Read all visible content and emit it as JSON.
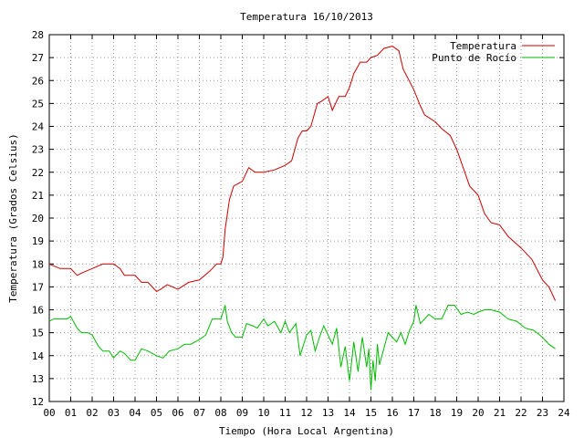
{
  "chart_data": {
    "type": "line",
    "title": "Temperatura 16/10/2013",
    "xlabel": "Tiempo (Hora Local Argentina)",
    "ylabel": "Temperatura (Grados Celsius)",
    "xlim": [
      0,
      24
    ],
    "ylim": [
      12,
      28
    ],
    "xticks": [
      "00",
      "01",
      "02",
      "03",
      "04",
      "05",
      "06",
      "07",
      "08",
      "09",
      "10",
      "11",
      "12",
      "13",
      "14",
      "15",
      "16",
      "17",
      "18",
      "19",
      "20",
      "21",
      "22",
      "23",
      "24"
    ],
    "yticks": [
      "12",
      "13",
      "14",
      "15",
      "16",
      "17",
      "18",
      "19",
      "20",
      "21",
      "22",
      "23",
      "24",
      "25",
      "26",
      "27",
      "28"
    ],
    "grid": true,
    "legend_position": "top-right",
    "series": [
      {
        "name": "Temperatura",
        "color": "#cc0000",
        "x": [
          0.0,
          0.5,
          1.0,
          1.3,
          1.5,
          2.0,
          2.5,
          3.0,
          3.3,
          3.5,
          4.0,
          4.3,
          4.6,
          5.0,
          5.2,
          5.5,
          6.0,
          6.5,
          7.0,
          7.5,
          7.8,
          8.0,
          8.1,
          8.2,
          8.4,
          8.6,
          8.8,
          9.0,
          9.3,
          9.6,
          10.0,
          10.5,
          11.0,
          11.3,
          11.6,
          11.8,
          12.0,
          12.2,
          12.5,
          12.7,
          13.0,
          13.2,
          13.5,
          13.8,
          14.0,
          14.2,
          14.5,
          14.8,
          15.0,
          15.3,
          15.6,
          16.0,
          16.3,
          16.5,
          17.0,
          17.3,
          17.5,
          18.0,
          18.3,
          18.7,
          19.0,
          19.3,
          19.6,
          20.0,
          20.3,
          20.6,
          21.0,
          21.4,
          22.0,
          22.5,
          23.0,
          23.3,
          23.6
        ],
        "y": [
          18.0,
          17.8,
          17.8,
          17.5,
          17.6,
          17.8,
          18.0,
          18.0,
          17.8,
          17.5,
          17.5,
          17.2,
          17.2,
          16.8,
          16.9,
          17.1,
          16.9,
          17.2,
          17.3,
          17.7,
          18.0,
          18.0,
          18.3,
          19.5,
          20.8,
          21.4,
          21.5,
          21.6,
          22.2,
          22.0,
          22.0,
          22.1,
          22.3,
          22.5,
          23.5,
          23.8,
          23.8,
          24.0,
          25.0,
          25.1,
          25.3,
          24.7,
          25.3,
          25.3,
          25.7,
          26.3,
          26.8,
          26.8,
          27.0,
          27.1,
          27.4,
          27.5,
          27.3,
          26.5,
          25.6,
          24.9,
          24.5,
          24.2,
          23.9,
          23.6,
          23.0,
          22.2,
          21.4,
          21.0,
          20.2,
          19.8,
          19.7,
          19.2,
          18.7,
          18.2,
          17.3,
          17.0,
          16.4
        ]
      },
      {
        "name": "Punto de Rocío",
        "color": "#00bb00",
        "x": [
          0.0,
          0.2,
          0.5,
          0.8,
          1.0,
          1.3,
          1.5,
          1.8,
          2.0,
          2.3,
          2.5,
          2.8,
          3.0,
          3.3,
          3.5,
          3.8,
          4.0,
          4.3,
          4.6,
          5.0,
          5.3,
          5.6,
          6.0,
          6.3,
          6.6,
          7.0,
          7.3,
          7.6,
          7.8,
          8.0,
          8.2,
          8.3,
          8.5,
          8.7,
          9.0,
          9.2,
          9.5,
          9.7,
          10.0,
          10.2,
          10.5,
          10.8,
          11.0,
          11.2,
          11.5,
          11.7,
          12.0,
          12.2,
          12.4,
          12.6,
          12.8,
          13.0,
          13.2,
          13.4,
          13.6,
          13.8,
          14.0,
          14.2,
          14.4,
          14.6,
          14.8,
          14.9,
          15.0,
          15.1,
          15.2,
          15.3,
          15.4,
          15.6,
          15.8,
          16.0,
          16.2,
          16.4,
          16.6,
          16.8,
          17.0,
          17.1,
          17.3,
          17.5,
          17.7,
          18.0,
          18.3,
          18.6,
          18.9,
          19.2,
          19.5,
          19.8,
          20.0,
          20.3,
          20.6,
          21.0,
          21.4,
          21.8,
          22.2,
          22.6,
          23.0,
          23.3,
          23.6
        ],
        "y": [
          15.5,
          15.6,
          15.6,
          15.6,
          15.7,
          15.2,
          15.0,
          15.0,
          14.9,
          14.4,
          14.2,
          14.2,
          13.9,
          14.2,
          14.1,
          13.8,
          13.8,
          14.3,
          14.2,
          14.0,
          13.9,
          14.2,
          14.3,
          14.5,
          14.5,
          14.7,
          14.9,
          15.6,
          15.6,
          15.6,
          16.2,
          15.5,
          15.0,
          14.8,
          14.8,
          15.4,
          15.3,
          15.2,
          15.6,
          15.3,
          15.5,
          15.0,
          15.5,
          15.0,
          15.4,
          14.0,
          14.9,
          15.1,
          14.2,
          14.8,
          15.3,
          14.9,
          14.5,
          15.2,
          13.5,
          14.4,
          12.9,
          14.6,
          13.3,
          14.8,
          13.5,
          14.3,
          12.5,
          13.8,
          12.9,
          14.5,
          13.6,
          14.3,
          15.0,
          14.8,
          14.6,
          15.0,
          14.5,
          15.1,
          15.5,
          16.2,
          15.4,
          15.6,
          15.8,
          15.6,
          15.6,
          16.2,
          16.2,
          15.8,
          15.9,
          15.8,
          15.9,
          16.0,
          16.0,
          15.9,
          15.6,
          15.5,
          15.2,
          15.1,
          14.8,
          14.5,
          14.3
        ]
      }
    ]
  }
}
